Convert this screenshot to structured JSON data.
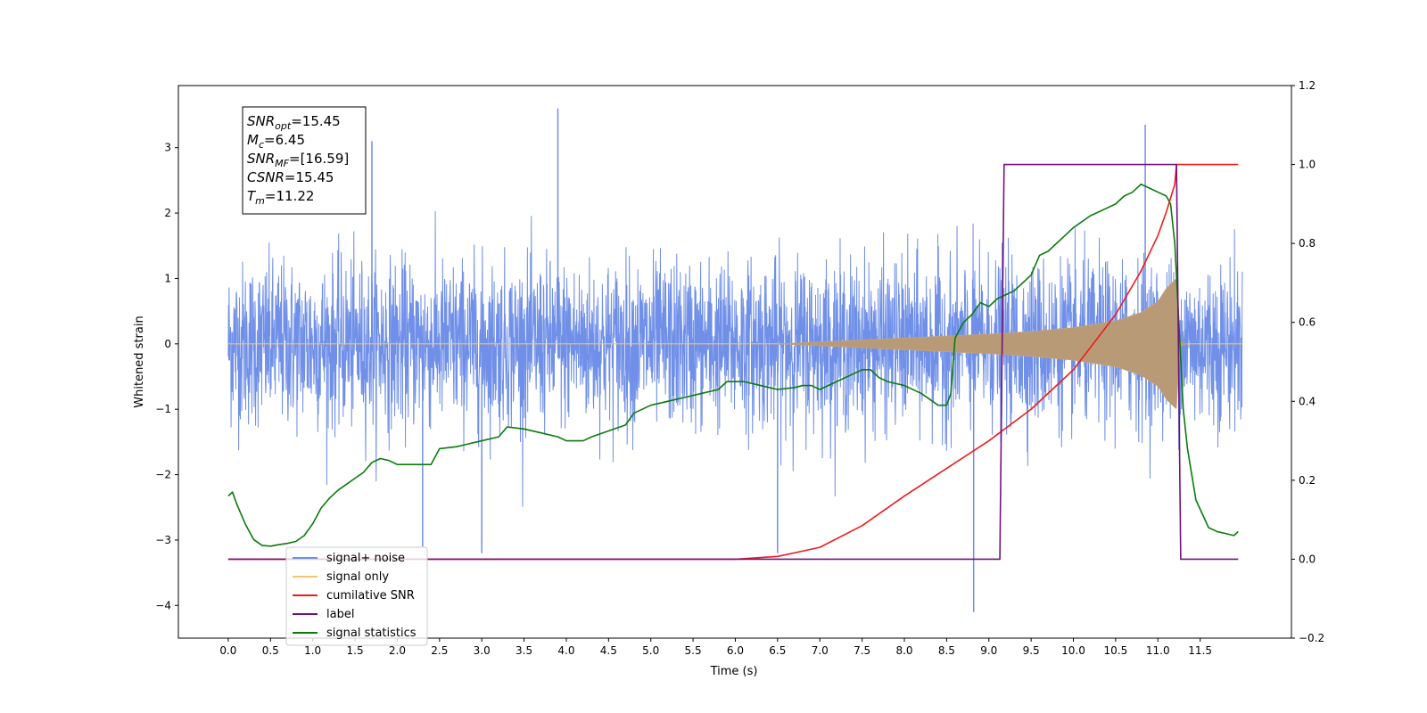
{
  "chart_data": {
    "type": "line",
    "xlabel": "Time (s)",
    "ylabel_left": "Whitened strain",
    "ylabel_right": "",
    "xlim": [
      -0.59,
      12.58
    ],
    "ylim_left": [
      -4.5,
      3.95
    ],
    "ylim_right": [
      -0.2,
      1.2
    ],
    "x_ticks": [
      "0.0",
      "0.5",
      "1.0",
      "1.5",
      "2.0",
      "2.5",
      "3.0",
      "3.5",
      "4.0",
      "4.5",
      "5.0",
      "5.5",
      "6.0",
      "6.5",
      "7.0",
      "7.5",
      "8.0",
      "8.5",
      "9.0",
      "9.5",
      "10.0",
      "10.5",
      "11.0",
      "11.5"
    ],
    "y_ticks_left": [
      "3",
      "2",
      "1",
      "0",
      "−1",
      "−2",
      "−3",
      "−4"
    ],
    "y_ticks_right": [
      "1.2",
      "1.0",
      "0.8",
      "0.6",
      "0.4",
      "0.2",
      "0.0",
      "−0.2"
    ],
    "grid": false,
    "legend_position": "lower-left",
    "stats_box": [
      {
        "main": "SNR",
        "sub": "opt",
        "value": "=15.45"
      },
      {
        "main": "M",
        "sub": "c",
        "value": "=6.45"
      },
      {
        "main": "SNR",
        "sub": "MF",
        "value": "=[16.59]"
      },
      {
        "main": "CSNR",
        "sub": "",
        "value": "=15.45"
      },
      {
        "main": "T",
        "sub": "m",
        "value": "=11.22"
      }
    ],
    "series": [
      {
        "name": "signal+ noise",
        "axis": "left",
        "color": "#6f8fe8",
        "envelope_std": 0.62,
        "x_range": [
          0.0,
          12.0
        ],
        "spikes": [
          [
            3.9,
            3.6
          ],
          [
            8.82,
            -4.1
          ],
          [
            2.3,
            -3.1
          ],
          [
            3.0,
            -3.2
          ],
          [
            6.5,
            -3.2
          ],
          [
            10.85,
            3.35
          ],
          [
            1.7,
            3.1
          ]
        ]
      },
      {
        "name": "signal only",
        "axis": "left",
        "color": "#f5c36b",
        "onset": 6.5,
        "peak_time": 11.22,
        "peak_amplitude": 1.0,
        "envelope_points": [
          [
            6.5,
            0.0
          ],
          [
            7.0,
            0.03
          ],
          [
            7.5,
            0.06
          ],
          [
            8.0,
            0.09
          ],
          [
            8.5,
            0.12
          ],
          [
            9.0,
            0.15
          ],
          [
            9.5,
            0.19
          ],
          [
            10.0,
            0.25
          ],
          [
            10.5,
            0.35
          ],
          [
            10.8,
            0.48
          ],
          [
            11.0,
            0.65
          ],
          [
            11.1,
            0.85
          ],
          [
            11.22,
            1.0
          ],
          [
            11.26,
            0.03
          ],
          [
            11.35,
            0.0
          ]
        ]
      },
      {
        "name": "cumilative SNR",
        "axis": "right",
        "color": "#ee1d1d",
        "x": [
          0.0,
          6.0,
          6.5,
          7.0,
          7.5,
          8.0,
          8.5,
          9.0,
          9.5,
          10.0,
          10.5,
          10.8,
          11.0,
          11.1,
          11.2,
          11.22,
          11.4,
          11.95
        ],
        "values": [
          0.0,
          0.0,
          0.007,
          0.03,
          0.085,
          0.16,
          0.23,
          0.3,
          0.38,
          0.48,
          0.62,
          0.73,
          0.82,
          0.88,
          0.95,
          1.0,
          1.0,
          1.0
        ]
      },
      {
        "name": "label",
        "axis": "right",
        "color": "#73127d",
        "x": [
          0.0,
          9.13,
          9.18,
          11.22,
          11.27,
          11.95
        ],
        "values": [
          0.0,
          0.0,
          1.0,
          1.0,
          0.0,
          0.0
        ]
      },
      {
        "name": "signal statistics",
        "axis": "right",
        "color": "#0c7a0c",
        "x": [
          0.0,
          0.05,
          0.1,
          0.2,
          0.3,
          0.4,
          0.5,
          0.6,
          0.7,
          0.8,
          0.9,
          1.0,
          1.1,
          1.2,
          1.3,
          1.4,
          1.5,
          1.6,
          1.7,
          1.8,
          1.9,
          2.0,
          2.2,
          2.4,
          2.5,
          2.7,
          2.8,
          3.0,
          3.2,
          3.3,
          3.5,
          3.7,
          3.9,
          4.0,
          4.2,
          4.3,
          4.5,
          4.7,
          4.8,
          5.0,
          5.2,
          5.4,
          5.6,
          5.8,
          5.9,
          6.1,
          6.3,
          6.5,
          6.7,
          6.8,
          6.9,
          7.0,
          7.2,
          7.4,
          7.5,
          7.6,
          7.7,
          7.8,
          8.0,
          8.2,
          8.4,
          8.5,
          8.55,
          8.6,
          8.7,
          8.8,
          8.9,
          9.0,
          9.1,
          9.3,
          9.5,
          9.6,
          9.7,
          9.8,
          9.9,
          10.0,
          10.2,
          10.4,
          10.5,
          10.6,
          10.7,
          10.8,
          10.9,
          11.0,
          11.1,
          11.15,
          11.2,
          11.3,
          11.35,
          11.45,
          11.6,
          11.7,
          11.8,
          11.9,
          11.95
        ],
        "values": [
          0.16,
          0.17,
          0.14,
          0.09,
          0.05,
          0.035,
          0.033,
          0.037,
          0.04,
          0.045,
          0.06,
          0.09,
          0.13,
          0.155,
          0.175,
          0.19,
          0.205,
          0.22,
          0.245,
          0.255,
          0.25,
          0.24,
          0.24,
          0.24,
          0.28,
          0.285,
          0.29,
          0.3,
          0.31,
          0.335,
          0.33,
          0.32,
          0.31,
          0.3,
          0.3,
          0.31,
          0.325,
          0.34,
          0.37,
          0.39,
          0.4,
          0.41,
          0.42,
          0.43,
          0.45,
          0.45,
          0.44,
          0.43,
          0.435,
          0.44,
          0.44,
          0.43,
          0.45,
          0.47,
          0.48,
          0.48,
          0.46,
          0.45,
          0.44,
          0.42,
          0.39,
          0.39,
          0.42,
          0.56,
          0.6,
          0.62,
          0.65,
          0.64,
          0.66,
          0.68,
          0.72,
          0.77,
          0.78,
          0.8,
          0.82,
          0.84,
          0.87,
          0.89,
          0.9,
          0.92,
          0.93,
          0.95,
          0.94,
          0.93,
          0.92,
          0.9,
          0.8,
          0.38,
          0.28,
          0.15,
          0.08,
          0.07,
          0.065,
          0.06,
          0.07
        ]
      }
    ],
    "legend_entries": [
      {
        "label": "signal+ noise",
        "color": "#6f8fe8"
      },
      {
        "label": "signal only",
        "color": "#f5c36b"
      },
      {
        "label": "cumilative SNR",
        "color": "#ee1d1d"
      },
      {
        "label": "label",
        "color": "#73127d"
      },
      {
        "label": "signal statistics",
        "color": "#0c7a0c"
      }
    ]
  }
}
